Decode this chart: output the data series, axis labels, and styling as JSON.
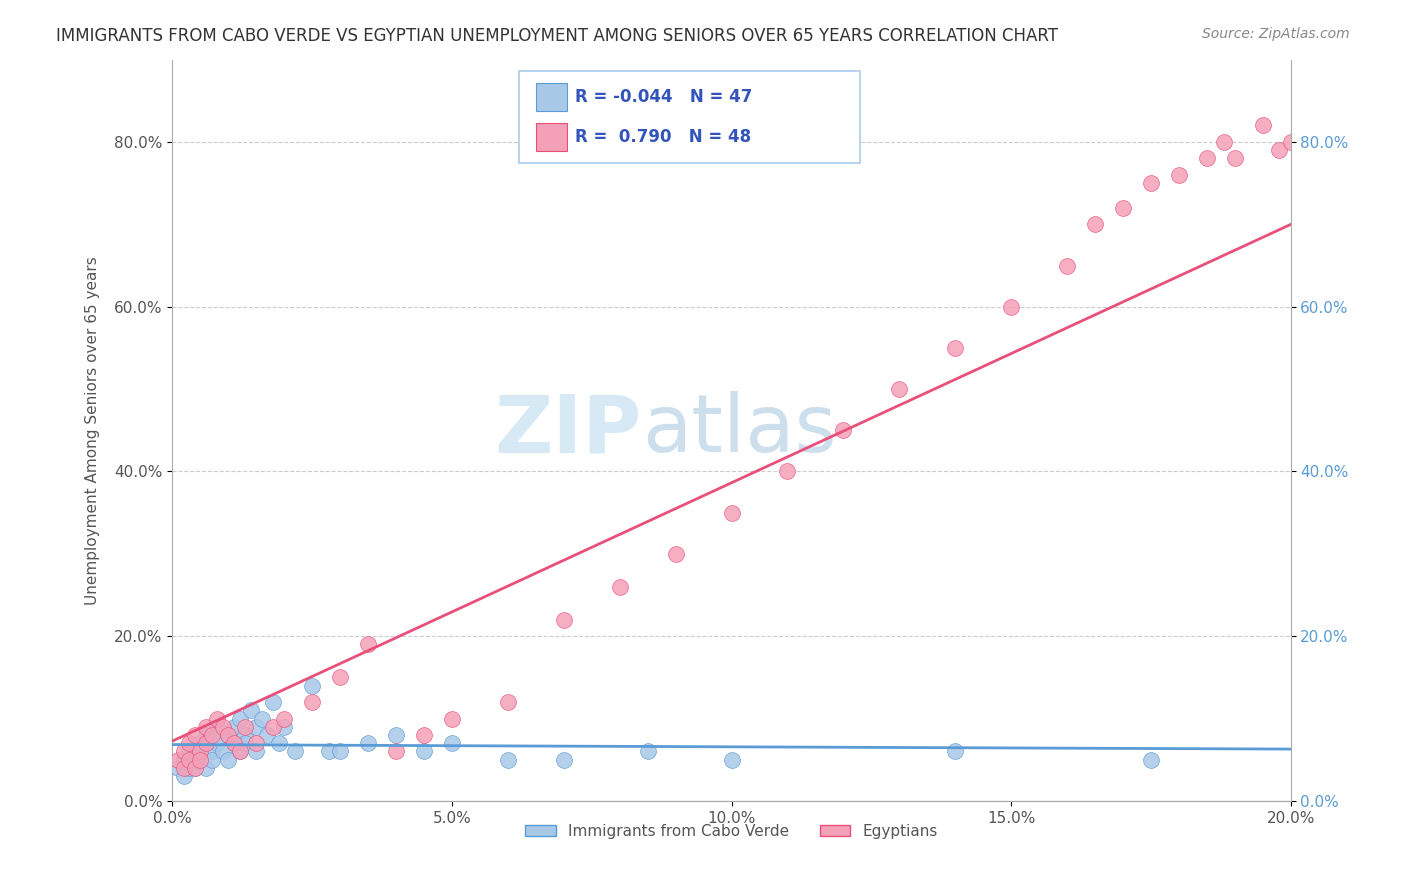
{
  "title": "IMMIGRANTS FROM CABO VERDE VS EGYPTIAN UNEMPLOYMENT AMONG SENIORS OVER 65 YEARS CORRELATION CHART",
  "source": "Source: ZipAtlas.com",
  "ylabel": "Unemployment Among Seniors over 65 years",
  "watermark_zip": "ZIP",
  "watermark_atlas": "atlas",
  "legend_label1": "Immigrants from Cabo Verde",
  "legend_label2": "Egyptians",
  "R1": -0.044,
  "N1": 47,
  "R2": 0.79,
  "N2": 48,
  "color1": "#a8c8e8",
  "color2": "#f4a0b8",
  "line_color1": "#5b9bd5",
  "line_color2": "#e8507a",
  "xlim": [
    0.0,
    0.2
  ],
  "ylim": [
    0.0,
    0.9
  ],
  "x_ticks": [
    0.0,
    0.05,
    0.1,
    0.15,
    0.2
  ],
  "x_tick_labels": [
    "0.0%",
    "5.0%",
    "10.0%",
    "15.0%",
    "20.0%"
  ],
  "y_ticks": [
    0.0,
    0.2,
    0.4,
    0.6,
    0.8
  ],
  "y_tick_labels": [
    "0.0%",
    "20.0%",
    "40.0%",
    "60.0%",
    "80.0%"
  ],
  "blue_x": [
    0.001,
    0.002,
    0.002,
    0.003,
    0.003,
    0.004,
    0.004,
    0.005,
    0.005,
    0.005,
    0.006,
    0.006,
    0.007,
    0.007,
    0.008,
    0.008,
    0.009,
    0.01,
    0.01,
    0.011,
    0.011,
    0.012,
    0.012,
    0.013,
    0.013,
    0.014,
    0.015,
    0.015,
    0.016,
    0.017,
    0.018,
    0.019,
    0.02,
    0.022,
    0.025,
    0.028,
    0.03,
    0.035,
    0.04,
    0.045,
    0.05,
    0.06,
    0.07,
    0.085,
    0.1,
    0.14,
    0.175
  ],
  "blue_y": [
    0.04,
    0.05,
    0.03,
    0.04,
    0.06,
    0.05,
    0.04,
    0.06,
    0.07,
    0.05,
    0.04,
    0.08,
    0.06,
    0.05,
    0.07,
    0.09,
    0.06,
    0.08,
    0.05,
    0.07,
    0.09,
    0.1,
    0.06,
    0.08,
    0.07,
    0.11,
    0.09,
    0.06,
    0.1,
    0.08,
    0.12,
    0.07,
    0.09,
    0.06,
    0.14,
    0.06,
    0.06,
    0.07,
    0.08,
    0.06,
    0.07,
    0.05,
    0.05,
    0.06,
    0.05,
    0.06,
    0.05
  ],
  "pink_x": [
    0.001,
    0.002,
    0.002,
    0.003,
    0.003,
    0.004,
    0.004,
    0.005,
    0.005,
    0.006,
    0.006,
    0.007,
    0.008,
    0.009,
    0.01,
    0.011,
    0.012,
    0.013,
    0.015,
    0.018,
    0.02,
    0.025,
    0.03,
    0.035,
    0.04,
    0.045,
    0.05,
    0.06,
    0.07,
    0.08,
    0.09,
    0.1,
    0.11,
    0.12,
    0.13,
    0.14,
    0.15,
    0.16,
    0.165,
    0.17,
    0.175,
    0.18,
    0.185,
    0.188,
    0.19,
    0.195,
    0.198,
    0.2
  ],
  "pink_y": [
    0.05,
    0.04,
    0.06,
    0.05,
    0.07,
    0.04,
    0.08,
    0.06,
    0.05,
    0.07,
    0.09,
    0.08,
    0.1,
    0.09,
    0.08,
    0.07,
    0.06,
    0.09,
    0.07,
    0.09,
    0.1,
    0.12,
    0.15,
    0.19,
    0.06,
    0.08,
    0.1,
    0.12,
    0.22,
    0.26,
    0.3,
    0.35,
    0.4,
    0.45,
    0.5,
    0.55,
    0.6,
    0.65,
    0.7,
    0.72,
    0.75,
    0.76,
    0.78,
    0.8,
    0.78,
    0.82,
    0.79,
    0.8
  ]
}
